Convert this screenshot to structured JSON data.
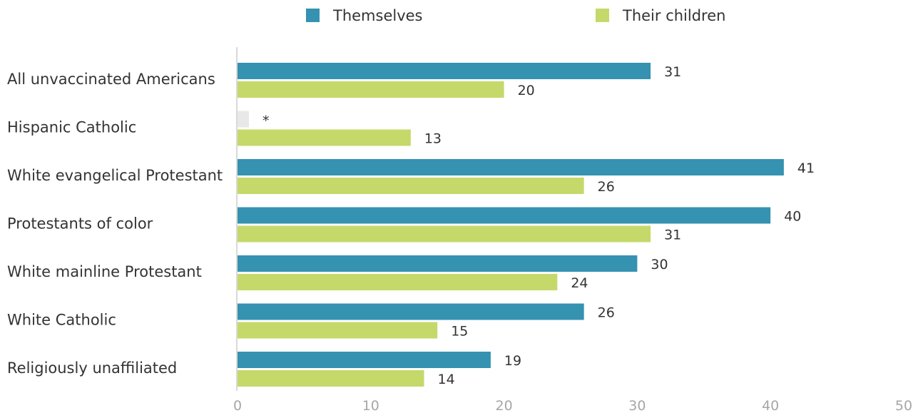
{
  "chart_data": {
    "type": "bar",
    "orientation": "horizontal",
    "categories": [
      "All unvaccinated Americans",
      "Hispanic Catholic",
      "White evangelical Protestant",
      "Protestants of color",
      "White mainline Protestant",
      "White Catholic",
      "Religiously unaffiliated"
    ],
    "series": [
      {
        "name": "Themselves",
        "color": "#3592b0",
        "values": [
          31,
          null,
          41,
          40,
          30,
          26,
          19
        ],
        "labels": [
          "31",
          "*",
          "41",
          "40",
          "30",
          "26",
          "19"
        ]
      },
      {
        "name": "Their children",
        "color": "#c4d96a",
        "values": [
          20,
          13,
          26,
          31,
          24,
          15,
          14
        ],
        "labels": [
          "20",
          "13",
          "26",
          "31",
          "24",
          "15",
          "14"
        ]
      }
    ],
    "missing_color": "#e8e8e8",
    "xlim": [
      0,
      50
    ],
    "xticks": [
      "0",
      "10",
      "20",
      "30",
      "40",
      "50"
    ],
    "legend_position": "top",
    "grid": false,
    "title": "",
    "xlabel": "",
    "ylabel": ""
  }
}
